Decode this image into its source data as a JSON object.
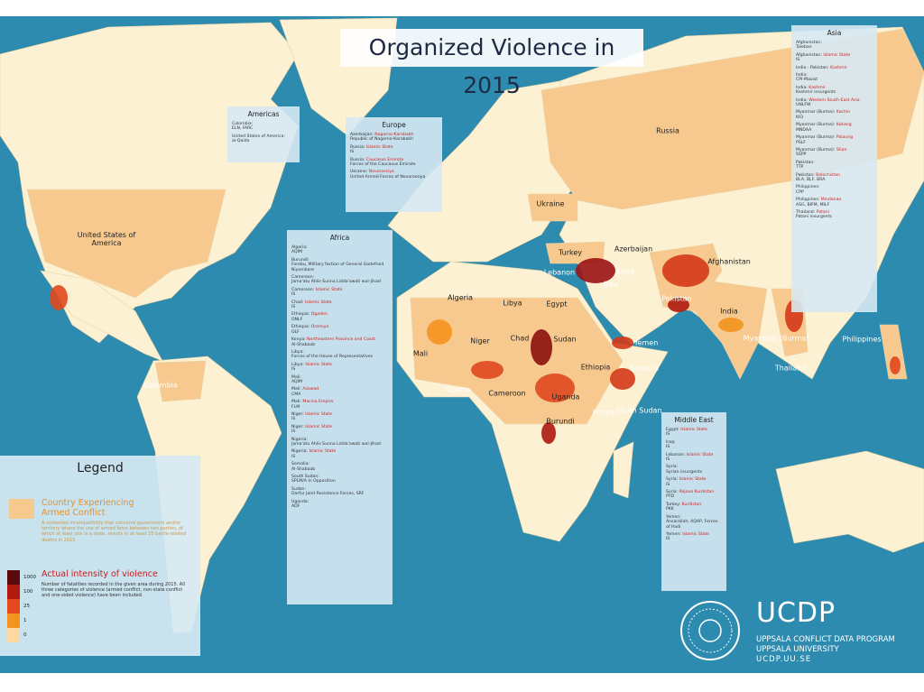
{
  "title": "Organized Violence in 2015",
  "country_labels": [
    "United States of America",
    "Russia",
    "Ukraine",
    "Turkey",
    "Azerbaijan",
    "Syria",
    "Iraq",
    "Lebanon",
    "Afghanistan",
    "Pakistan",
    "India",
    "Algeria",
    "Libya",
    "Egypt",
    "Mali",
    "Niger",
    "Chad",
    "Sudan",
    "Ethiopia",
    "Somalia",
    "Yemen",
    "Nigeria",
    "Cameroon",
    "Uganda",
    "Kenya",
    "South Sudan",
    "Burundi",
    "Myanmar (Burma)",
    "Thailand",
    "Philippines",
    "Colombia"
  ],
  "panels": {
    "americas": {
      "title": "Americas",
      "entries": [
        {
          "country": "Colombia:",
          "actor": "ELN, FARC"
        },
        {
          "country": "United States of America:",
          "actor": "al-Qaida"
        }
      ]
    },
    "europe": {
      "title": "Europe",
      "entries": [
        {
          "country": "Azerbaijan:",
          "region": "Nagorno-Karabakh",
          "actor": "Republic of Nagorno-Karabakh"
        },
        {
          "country": "Russia:",
          "region": "Islamic State",
          "actor": "IS"
        },
        {
          "country": "Russia:",
          "region": "Caucasus Emirate",
          "actor": "Forces of the Caucasus Emirate"
        },
        {
          "country": "Ukraine:",
          "region": "Novorossiya",
          "actor": "United Armed Forces of Novorossiya"
        }
      ]
    },
    "africa": {
      "title": "Africa",
      "entries": [
        {
          "country": "Algeria:",
          "actor": "AQIM"
        },
        {
          "country": "Burundi:",
          "actor": "Forebu, Military faction of General Godefroid Niyombare"
        },
        {
          "country": "Cameroon:",
          "actor": "Jama'atu Ahlis Sunna Lidda'awati wal-Jihad"
        },
        {
          "country": "Cameroon:",
          "region": "Islamic State",
          "actor": "IS"
        },
        {
          "country": "Chad:",
          "region": "Islamic State",
          "actor": "IS"
        },
        {
          "country": "Ethiopia:",
          "region": "Ogaden",
          "actor": "ONLF"
        },
        {
          "country": "Ethiopia:",
          "region": "Oromiya",
          "actor": "OLF"
        },
        {
          "country": "Kenya:",
          "region": "Northeastern Province and Coast",
          "actor": "Al-Shabaab"
        },
        {
          "country": "Libya:",
          "actor": "Forces of the House of Representatives"
        },
        {
          "country": "Libya:",
          "region": "Islamic State",
          "actor": "IS"
        },
        {
          "country": "Mali:",
          "actor": "AQIM"
        },
        {
          "country": "Mali:",
          "region": "Azawad",
          "actor": "CMA"
        },
        {
          "country": "Mali:",
          "region": "Macina Empire",
          "actor": "FLM"
        },
        {
          "country": "Niger:",
          "region": "Islamic State",
          "actor": "IS"
        },
        {
          "country": "Niger:",
          "region": "Islamic State",
          "actor": "IS"
        },
        {
          "country": "Nigeria:",
          "actor": "Jama'atu Ahlis Sunna Lidda'awati wal-Jihad"
        },
        {
          "country": "Nigeria:",
          "region": "Islamic State",
          "actor": "IS"
        },
        {
          "country": "Somalia:",
          "actor": "Al-Shabaab"
        },
        {
          "country": "South Sudan:",
          "actor": "SPLM/A In Opposition"
        },
        {
          "country": "Sudan:",
          "actor": "Darfur Joint Resistance Forces, SRF"
        },
        {
          "country": "Uganda:",
          "actor": "ADF"
        }
      ]
    },
    "asia": {
      "title": "Asia",
      "entries": [
        {
          "country": "Afghanistan:",
          "actor": "Taleban"
        },
        {
          "country": "Afghanistan:",
          "region": "Islamic State",
          "actor": "IS"
        },
        {
          "country": "India - Pakistan:",
          "region": "Kashmir"
        },
        {
          "country": "India:",
          "actor": "CPI-Maoist"
        },
        {
          "country": "India:",
          "region": "Kashmir",
          "actor": "Kashmir insurgents"
        },
        {
          "country": "India:",
          "region": "Western South-East Asia",
          "actor": "UNLFW"
        },
        {
          "country": "Myanmar (Burma):",
          "region": "Kachin",
          "actor": "KIO"
        },
        {
          "country": "Myanmar (Burma):",
          "region": "Kokang",
          "actor": "MNDAA"
        },
        {
          "country": "Myanmar (Burma):",
          "region": "Palaung",
          "actor": "PSLF"
        },
        {
          "country": "Myanmar (Burma):",
          "region": "Shan",
          "actor": "SSPP"
        },
        {
          "country": "Pakistan:",
          "actor": "TTP"
        },
        {
          "country": "Pakistan:",
          "region": "Balochistan",
          "actor": "BLA, BLF, BRA"
        },
        {
          "country": "Philippines:",
          "actor": "CPP"
        },
        {
          "country": "Philippines:",
          "region": "Mindanao",
          "actor": "ASG, BIFM, MILF"
        },
        {
          "country": "Thailand:",
          "region": "Patani",
          "actor": "Patani insurgents"
        }
      ]
    },
    "middle_east": {
      "title": "Middle East",
      "entries": [
        {
          "country": "Egypt:",
          "region": "Islamic State",
          "actor": "IS"
        },
        {
          "country": "Iraq:",
          "actor": "IS"
        },
        {
          "country": "Lebanon:",
          "region": "Islamic State",
          "actor": "IS"
        },
        {
          "country": "Syria:",
          "actor": "Syrian insurgents"
        },
        {
          "country": "Syria:",
          "region": "Islamic State",
          "actor": "IS"
        },
        {
          "country": "Syria:",
          "region": "Rojava Kurdistan",
          "actor": "PYD"
        },
        {
          "country": "Turkey:",
          "region": "Kurdistan",
          "actor": "PKK"
        },
        {
          "country": "Yemen:",
          "actor": "Ansarallah, AQAP, Forces of Hadi"
        },
        {
          "country": "Yemen:",
          "region": "Islamic State",
          "actor": "IS"
        }
      ]
    }
  },
  "legend": {
    "title": "Legend",
    "conflict": {
      "label": "Country Experiencing Armed Conflict",
      "text": "A contested incompatibility that concerns government and/or territory where the use of armed force between two parties, of which at least one is a state, results in at least 25 battle-related deaths in 2015"
    },
    "intensity": {
      "label": "Actual intensity of violence",
      "text": "Number of fatalities recorded in the given area during 2015. All three categories of violence (armed conflict, non-state conflict and one-sided violence) have been included."
    },
    "scale": [
      "1000",
      "100",
      "25",
      "1",
      "0"
    ]
  },
  "logo": {
    "name": "UCDP",
    "line1": "UPPSALA CONFLICT DATA PROGRAM",
    "line2": "UPPSALA UNIVERSITY",
    "url": "UCDP.UU.SE"
  }
}
